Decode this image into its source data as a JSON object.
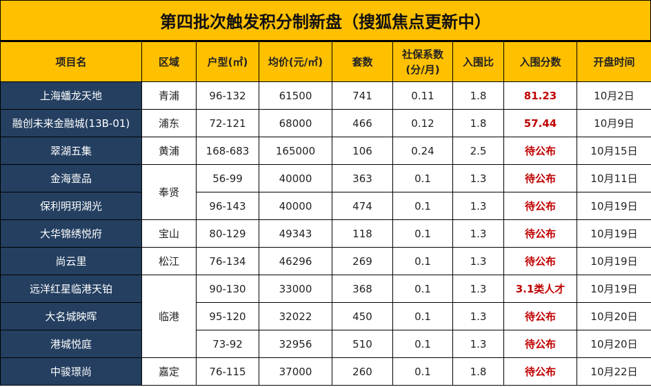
{
  "title": "第四批次触发积分制新盘（搜狐焦点更新中）",
  "colors": {
    "header_bg": "#FFC000",
    "name_bg": "#243F60",
    "highlight": "#C00000"
  },
  "headers": [
    "项目名",
    "区域",
    "户型(㎡)",
    "均价(元/㎡)",
    "套数",
    "社保系数(分/月)",
    "入围比",
    "入围分数",
    "开盘时间"
  ],
  "rows": [
    {
      "name": "上海蟠龙天地",
      "district": "青浦",
      "size": "96-132",
      "price": "61500",
      "units": "741",
      "coef": "0.11",
      "ratio": "1.8",
      "score": "81.23",
      "date": "10月2日"
    },
    {
      "name": "融创未来金融城(13B-01)",
      "district": "浦东",
      "size": "72-121",
      "price": "68000",
      "units": "466",
      "coef": "0.12",
      "ratio": "1.8",
      "score": "57.44",
      "date": "10月9日"
    },
    {
      "name": "翠湖五集",
      "district": "黄浦",
      "size": "168-683",
      "price": "165000",
      "units": "106",
      "coef": "0.24",
      "ratio": "2.5",
      "score": "待公布",
      "date": "10月15日"
    },
    {
      "name": "金海壹品",
      "district": "奉贤",
      "size": "56-99",
      "price": "40000",
      "units": "363",
      "coef": "0.1",
      "ratio": "1.3",
      "score": "待公布",
      "date": "10月11日"
    },
    {
      "name": "保利明玥湖光",
      "district": "奉贤",
      "size": "96-143",
      "price": "40000",
      "units": "474",
      "coef": "0.1",
      "ratio": "1.3",
      "score": "待公布",
      "date": "10月19日"
    },
    {
      "name": "大华锦绣悦府",
      "district": "宝山",
      "size": "80-129",
      "price": "49343",
      "units": "118",
      "coef": "0.1",
      "ratio": "1.3",
      "score": "待公布",
      "date": "10月19日"
    },
    {
      "name": "尚云里",
      "district": "松江",
      "size": "76-134",
      "price": "46296",
      "units": "269",
      "coef": "0.1",
      "ratio": "1.3",
      "score": "待公布",
      "date": "10月19日"
    },
    {
      "name": "远洋红星临港天铂",
      "district": "临港",
      "size": "90-130",
      "price": "33000",
      "units": "368",
      "coef": "0.1",
      "ratio": "1.3",
      "score": "3.1类人才",
      "date": "10月19日"
    },
    {
      "name": "大名城映晖",
      "district": "临港",
      "size": "95-120",
      "price": "32022",
      "units": "450",
      "coef": "0.1",
      "ratio": "1.3",
      "score": "待公布",
      "date": "10月20日"
    },
    {
      "name": "港城悦庭",
      "district": "临港",
      "size": "73-92",
      "price": "32956",
      "units": "510",
      "coef": "0.1",
      "ratio": "1.3",
      "score": "待公布",
      "date": "10月20日"
    },
    {
      "name": "中骏璟尚",
      "district": "嘉定",
      "size": "76-115",
      "price": "37000",
      "units": "260",
      "coef": "0.1",
      "ratio": "1.8",
      "score": "待公布",
      "date": "10月22日"
    }
  ]
}
